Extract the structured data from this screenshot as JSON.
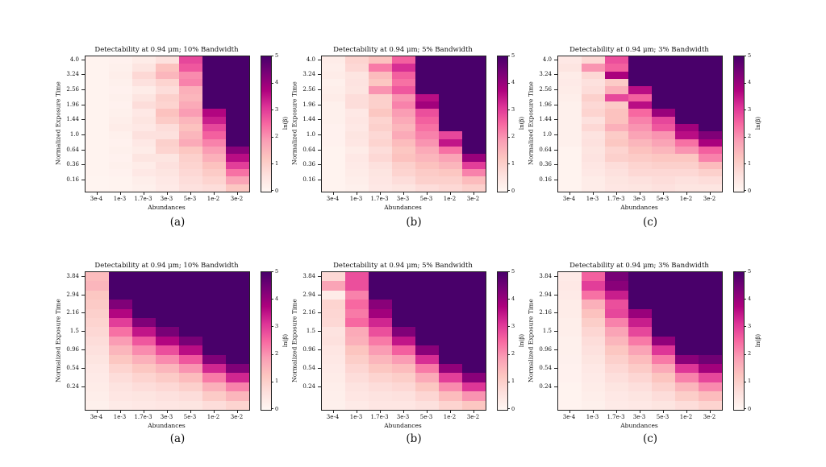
{
  "figure": {
    "background": "#ffffff",
    "text_color": "#111111",
    "colormap": {
      "name": "RdPu",
      "stops": [
        "#fff7f3",
        "#fde0dd",
        "#fcc5c0",
        "#fa9fb5",
        "#f768a1",
        "#dd3497",
        "#ae017e",
        "#7a0177",
        "#49006a"
      ]
    }
  },
  "chart_data": [
    {
      "type": "heatmap",
      "row": 0,
      "col": 0,
      "title": "Detectability at 0.94 μm; 10% Bandwidth",
      "caption": "(a)",
      "xlabel": "Abundances",
      "ylabel": "Normalized Exposure Time",
      "x_ticks": [
        "3e-4",
        "1e-3",
        "1.7e-3",
        "3e-3",
        "5e-3",
        "1e-2",
        "3e-2"
      ],
      "y_ticks": [
        "4.0",
        "3.24",
        "2.56",
        "1.96",
        "1.44",
        "1.0",
        "0.64",
        "0.36",
        "0.16"
      ],
      "colorbar": {
        "label": "ln(β)",
        "min": 0,
        "max": 5,
        "ticks": [
          "0",
          "1",
          "2",
          "3",
          "4",
          "5"
        ]
      },
      "values": [
        [
          0.1,
          0.15,
          0.3,
          0.6,
          2.9,
          5,
          5
        ],
        [
          0.1,
          0.2,
          0.5,
          1.3,
          2.7,
          5,
          5
        ],
        [
          0.1,
          0.25,
          0.8,
          1.5,
          2.1,
          5,
          5
        ],
        [
          0.1,
          0.2,
          0.6,
          0.9,
          2.2,
          5,
          5
        ],
        [
          0.1,
          0.15,
          0.3,
          0.7,
          1.6,
          5,
          5
        ],
        [
          0.1,
          0.2,
          0.5,
          1.0,
          1.5,
          5,
          5
        ],
        [
          0.1,
          0.15,
          0.7,
          0.9,
          1.7,
          5,
          5
        ],
        [
          0.1,
          0.2,
          0.4,
          1.3,
          1.9,
          3.7,
          5
        ],
        [
          0.1,
          0.25,
          0.5,
          1.1,
          1.5,
          3.4,
          5
        ],
        [
          0.12,
          0.3,
          0.4,
          0.7,
          1.3,
          2.9,
          5
        ],
        [
          0.1,
          0.2,
          0.6,
          0.6,
          1.5,
          2.6,
          5
        ],
        [
          0.1,
          0.15,
          0.4,
          1.0,
          1.7,
          2.2,
          5
        ],
        [
          0.1,
          0.2,
          0.3,
          0.9,
          1.2,
          1.9,
          4.2
        ],
        [
          0.1,
          0.15,
          0.5,
          0.5,
          1.0,
          1.6,
          3.6
        ],
        [
          0.1,
          0.2,
          0.3,
          0.6,
          0.9,
          1.3,
          3.0
        ],
        [
          0.1,
          0.15,
          0.4,
          0.5,
          0.8,
          1.1,
          2.4
        ],
        [
          0.08,
          0.1,
          0.25,
          0.4,
          0.7,
          0.9,
          1.8
        ],
        [
          0.08,
          0.1,
          0.2,
          0.35,
          0.6,
          0.7,
          1.2
        ]
      ]
    },
    {
      "type": "heatmap",
      "row": 0,
      "col": 1,
      "title": "Detectability at 0.94 μm; 5% Bandwidth",
      "caption": "(b)",
      "xlabel": "Abundances",
      "ylabel": "Normalized Exposure Time",
      "x_ticks": [
        "3e-4",
        "1e-3",
        "1.7e-3",
        "3e-3",
        "5e-3",
        "1e-2",
        "3e-2"
      ],
      "y_ticks": [
        "4.0",
        "3.24",
        "2.56",
        "1.96",
        "1.44",
        "1.0",
        "0.64",
        "0.36",
        "0.16"
      ],
      "colorbar": {
        "label": "ln(β)",
        "min": 0,
        "max": 5,
        "ticks": [
          "0",
          "1",
          "2",
          "3",
          "4",
          "5"
        ]
      },
      "values": [
        [
          0.3,
          0.9,
          1.3,
          2.6,
          5,
          5,
          5
        ],
        [
          0.25,
          0.8,
          2.3,
          3.2,
          5,
          5,
          5
        ],
        [
          0.3,
          0.5,
          1.4,
          2.6,
          5,
          5,
          5
        ],
        [
          0.2,
          0.55,
          1.2,
          2.4,
          5,
          5,
          5
        ],
        [
          0.25,
          0.5,
          2.0,
          2.7,
          5,
          5,
          5
        ],
        [
          0.3,
          0.7,
          1.0,
          2.0,
          3.6,
          5,
          5
        ],
        [
          0.2,
          0.7,
          1.0,
          2.2,
          3.9,
          5,
          5
        ],
        [
          0.2,
          0.4,
          1.2,
          1.9,
          2.8,
          5,
          5
        ],
        [
          0.2,
          0.45,
          0.9,
          1.7,
          2.6,
          5,
          5
        ],
        [
          0.15,
          0.4,
          1.0,
          1.5,
          2.4,
          5,
          5
        ],
        [
          0.15,
          0.5,
          0.8,
          1.7,
          2.2,
          2.9,
          5
        ],
        [
          0.15,
          0.45,
          0.9,
          1.4,
          2.0,
          3.5,
          5
        ],
        [
          0.12,
          0.3,
          0.7,
          1.2,
          1.7,
          2.4,
          5
        ],
        [
          0.12,
          0.4,
          0.8,
          1.3,
          1.5,
          1.8,
          4.0
        ],
        [
          0.1,
          0.35,
          0.6,
          1.0,
          1.3,
          1.5,
          3.0
        ],
        [
          0.1,
          0.3,
          0.5,
          0.9,
          1.1,
          1.2,
          2.2
        ],
        [
          0.1,
          0.25,
          0.45,
          0.7,
          1.0,
          1.0,
          1.4
        ],
        [
          0.1,
          0.2,
          0.4,
          0.5,
          0.7,
          0.8,
          1.0
        ]
      ]
    },
    {
      "type": "heatmap",
      "row": 0,
      "col": 2,
      "title": "Detectability at 0.94 μm; 3% Bandwidth",
      "caption": "(c)",
      "xlabel": "Abundances",
      "ylabel": "Normalized Exposure Time",
      "x_ticks": [
        "3e-4",
        "1e-3",
        "1.7e-3",
        "3e-3",
        "5e-3",
        "1e-2",
        "3e-2"
      ],
      "y_ticks": [
        "4.0",
        "3.24",
        "2.56",
        "1.96",
        "1.44",
        "1.0",
        "0.64",
        "0.36",
        "0.16"
      ],
      "colorbar": {
        "label": "ln(β)",
        "min": 0,
        "max": 5,
        "ticks": [
          "0",
          "1",
          "2",
          "3",
          "4",
          "5"
        ]
      },
      "values": [
        [
          0.4,
          0.8,
          2.8,
          5,
          5,
          5,
          5
        ],
        [
          0.5,
          2.0,
          2.6,
          5,
          5,
          5,
          5
        ],
        [
          0.3,
          0.8,
          3.8,
          5,
          5,
          5,
          5
        ],
        [
          0.35,
          0.6,
          1.1,
          5,
          5,
          5,
          5
        ],
        [
          0.3,
          0.7,
          1.6,
          3.6,
          5,
          5,
          5
        ],
        [
          0.25,
          1.0,
          2.9,
          2.6,
          5,
          5,
          5
        ],
        [
          0.2,
          0.8,
          1.1,
          3.6,
          5,
          5,
          5
        ],
        [
          0.2,
          0.9,
          1.3,
          2.5,
          4.0,
          5,
          5
        ],
        [
          0.2,
          0.6,
          1.3,
          2.2,
          2.9,
          5,
          5
        ],
        [
          0.2,
          0.8,
          1.6,
          2.0,
          2.7,
          3.9,
          5
        ],
        [
          0.2,
          0.55,
          1.1,
          1.8,
          2.0,
          3.6,
          4.3
        ],
        [
          0.2,
          0.6,
          1.2,
          1.5,
          1.8,
          2.4,
          3.8
        ],
        [
          0.12,
          0.5,
          0.9,
          1.3,
          1.5,
          2.0,
          2.6
        ],
        [
          0.12,
          0.55,
          1.0,
          1.1,
          1.2,
          1.2,
          2.2
        ],
        [
          0.12,
          0.45,
          0.7,
          0.9,
          1.0,
          1.0,
          1.4
        ],
        [
          0.12,
          0.4,
          0.6,
          0.8,
          0.8,
          0.8,
          1.0
        ],
        [
          0.1,
          0.3,
          0.5,
          0.6,
          0.7,
          0.6,
          0.7
        ],
        [
          0.1,
          0.3,
          0.45,
          0.5,
          0.6,
          0.5,
          0.5
        ]
      ]
    },
    {
      "type": "heatmap",
      "row": 1,
      "col": 0,
      "title": "Detectability at 0.94 μm; 10% Bandwidth",
      "caption": "(a)",
      "xlabel": "Abundances",
      "ylabel": "Normalized Exposure Time",
      "x_ticks": [
        "3e-4",
        "1e-3",
        "1.7e-3",
        "3e-3",
        "5e-3",
        "1e-2",
        "3e-2"
      ],
      "y_ticks": [
        "3.84",
        "2.94",
        "2.16",
        "1.5",
        "0.96",
        "0.54",
        "0.24"
      ],
      "colorbar": {
        "label": "ln(β)",
        "min": 0,
        "max": 5,
        "ticks": [
          "0",
          "1",
          "2",
          "3",
          "4",
          "5"
        ]
      },
      "values": [
        [
          1.4,
          5,
          5,
          5,
          5,
          5,
          5
        ],
        [
          1.5,
          5,
          5,
          5,
          5,
          5,
          5
        ],
        [
          1.2,
          5,
          5,
          5,
          5,
          5,
          5
        ],
        [
          1.1,
          4.3,
          5,
          5,
          5,
          5,
          5
        ],
        [
          1.0,
          3.7,
          5,
          5,
          5,
          5,
          5
        ],
        [
          0.9,
          3.0,
          4.3,
          5,
          5,
          5,
          5
        ],
        [
          0.8,
          2.4,
          3.5,
          4.4,
          5,
          5,
          5
        ],
        [
          0.7,
          1.9,
          2.7,
          3.7,
          4.4,
          5,
          5
        ],
        [
          0.6,
          1.5,
          2.1,
          2.8,
          3.6,
          5,
          5
        ],
        [
          0.5,
          1.2,
          1.6,
          2.1,
          2.7,
          4.3,
          5
        ],
        [
          0.4,
          0.9,
          1.2,
          1.5,
          2.0,
          3.3,
          4.3
        ],
        [
          0.35,
          0.7,
          0.9,
          1.1,
          1.4,
          2.3,
          3.3
        ],
        [
          0.3,
          0.55,
          0.7,
          0.8,
          1.0,
          1.6,
          2.2
        ],
        [
          0.25,
          0.45,
          0.5,
          0.6,
          0.7,
          1.1,
          1.5
        ],
        [
          0.2,
          0.35,
          0.4,
          0.45,
          0.5,
          0.7,
          0.9
        ]
      ]
    },
    {
      "type": "heatmap",
      "row": 1,
      "col": 1,
      "title": "Detectability at 0.94 μm; 5% Bandwidth",
      "caption": "(b)",
      "xlabel": "Abundances",
      "ylabel": "Normalized Exposure Time",
      "x_ticks": [
        "3e-4",
        "1e-3",
        "1.7e-3",
        "3e-3",
        "5e-3",
        "1e-2",
        "3e-2"
      ],
      "y_ticks": [
        "3.84",
        "2.94",
        "2.16",
        "1.5",
        "0.96",
        "0.54",
        "0.24"
      ],
      "colorbar": {
        "label": "ln(β)",
        "min": 0,
        "max": 5,
        "ticks": [
          "0",
          "1",
          "2",
          "3",
          "4",
          "5"
        ]
      },
      "values": [
        [
          0.8,
          2.8,
          5,
          5,
          5,
          5,
          5
        ],
        [
          1.8,
          2.8,
          5,
          5,
          5,
          5,
          5
        ],
        [
          0.3,
          2.2,
          5,
          5,
          5,
          5,
          5
        ],
        [
          0.9,
          2.5,
          4.2,
          5,
          5,
          5,
          5
        ],
        [
          0.85,
          2.3,
          3.9,
          5,
          5,
          5,
          5
        ],
        [
          0.8,
          2.5,
          3.3,
          5,
          5,
          5,
          5
        ],
        [
          0.55,
          1.7,
          2.8,
          4.3,
          5,
          5,
          5
        ],
        [
          0.6,
          1.6,
          2.3,
          3.5,
          5,
          5,
          5
        ],
        [
          0.45,
          1.25,
          1.9,
          2.6,
          4.2,
          5,
          5
        ],
        [
          0.4,
          1.05,
          1.5,
          1.9,
          3.2,
          5,
          5
        ],
        [
          0.35,
          0.85,
          1.2,
          1.4,
          2.3,
          4.1,
          5
        ],
        [
          0.3,
          0.7,
          0.9,
          1.05,
          1.7,
          3.0,
          4.2
        ],
        [
          0.25,
          0.55,
          0.7,
          0.8,
          1.2,
          2.1,
          3.1
        ],
        [
          0.22,
          0.45,
          0.55,
          0.6,
          0.85,
          1.4,
          2.0
        ],
        [
          0.2,
          0.35,
          0.45,
          0.45,
          0.6,
          0.9,
          1.2
        ]
      ]
    },
    {
      "type": "heatmap",
      "row": 1,
      "col": 2,
      "title": "Detectability at 0.94 μm; 3% Bandwidth",
      "caption": "(c)",
      "xlabel": "Abundances",
      "ylabel": "Normalized Exposure Time",
      "x_ticks": [
        "3e-4",
        "1e-3",
        "1.7e-3",
        "3e-3",
        "5e-3",
        "1e-2",
        "3e-2"
      ],
      "y_ticks": [
        "3.84",
        "2.94",
        "2.16",
        "1.5",
        "0.96",
        "0.54",
        "0.24"
      ],
      "colorbar": {
        "label": "ln(β)",
        "min": 0,
        "max": 5,
        "ticks": [
          "0",
          "1",
          "2",
          "3",
          "4",
          "5"
        ]
      },
      "values": [
        [
          0.35,
          2.6,
          4.4,
          5,
          5,
          5,
          5
        ],
        [
          0.4,
          3.0,
          4.2,
          5,
          5,
          5,
          5
        ],
        [
          0.35,
          2.4,
          3.4,
          5,
          5,
          5,
          5
        ],
        [
          0.3,
          1.6,
          2.8,
          5,
          5,
          5,
          5
        ],
        [
          0.3,
          1.3,
          2.9,
          4.0,
          5,
          5,
          5
        ],
        [
          0.25,
          1.05,
          2.2,
          3.4,
          5,
          5,
          5
        ],
        [
          0.25,
          0.85,
          1.8,
          2.9,
          5,
          5,
          5
        ],
        [
          0.2,
          0.7,
          1.5,
          2.3,
          4.1,
          5,
          5
        ],
        [
          0.2,
          0.6,
          1.2,
          1.8,
          3.1,
          5,
          5
        ],
        [
          0.18,
          0.5,
          1.0,
          1.4,
          2.3,
          4.2,
          4.5
        ],
        [
          0.15,
          0.4,
          0.8,
          1.1,
          1.7,
          3.1,
          3.9
        ],
        [
          0.15,
          0.35,
          0.65,
          0.85,
          1.25,
          2.2,
          2.9
        ],
        [
          0.12,
          0.3,
          0.5,
          0.65,
          0.95,
          1.5,
          2.1
        ],
        [
          0.1,
          0.25,
          0.4,
          0.5,
          0.7,
          1.05,
          1.4
        ],
        [
          0.1,
          0.2,
          0.35,
          0.4,
          0.5,
          0.7,
          0.9
        ]
      ]
    }
  ]
}
